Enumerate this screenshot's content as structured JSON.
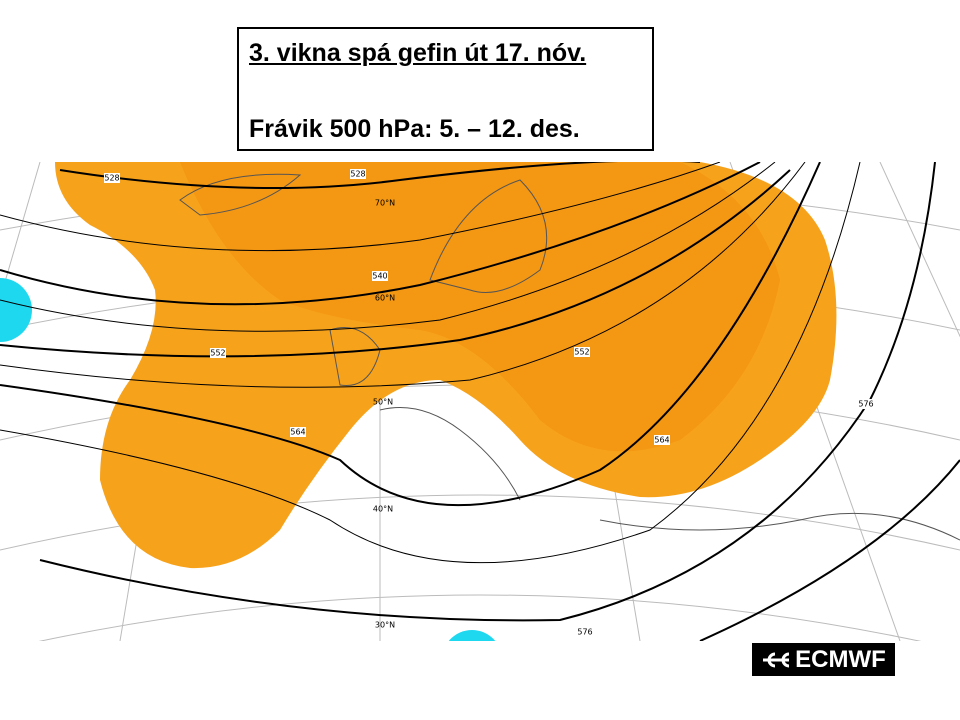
{
  "header": {
    "line1": "3. vikna spá gefin út 17. nóv.",
    "line2": "Frávik 500 hPa: 5. – 12. des."
  },
  "map": {
    "contour_labels": [
      528,
      528,
      540,
      552,
      552,
      564,
      564,
      576,
      576
    ],
    "latitude_labels": [
      "70°N",
      "60°N",
      "50°N",
      "40°N",
      "30°N"
    ]
  },
  "logo": "ECMWF"
}
